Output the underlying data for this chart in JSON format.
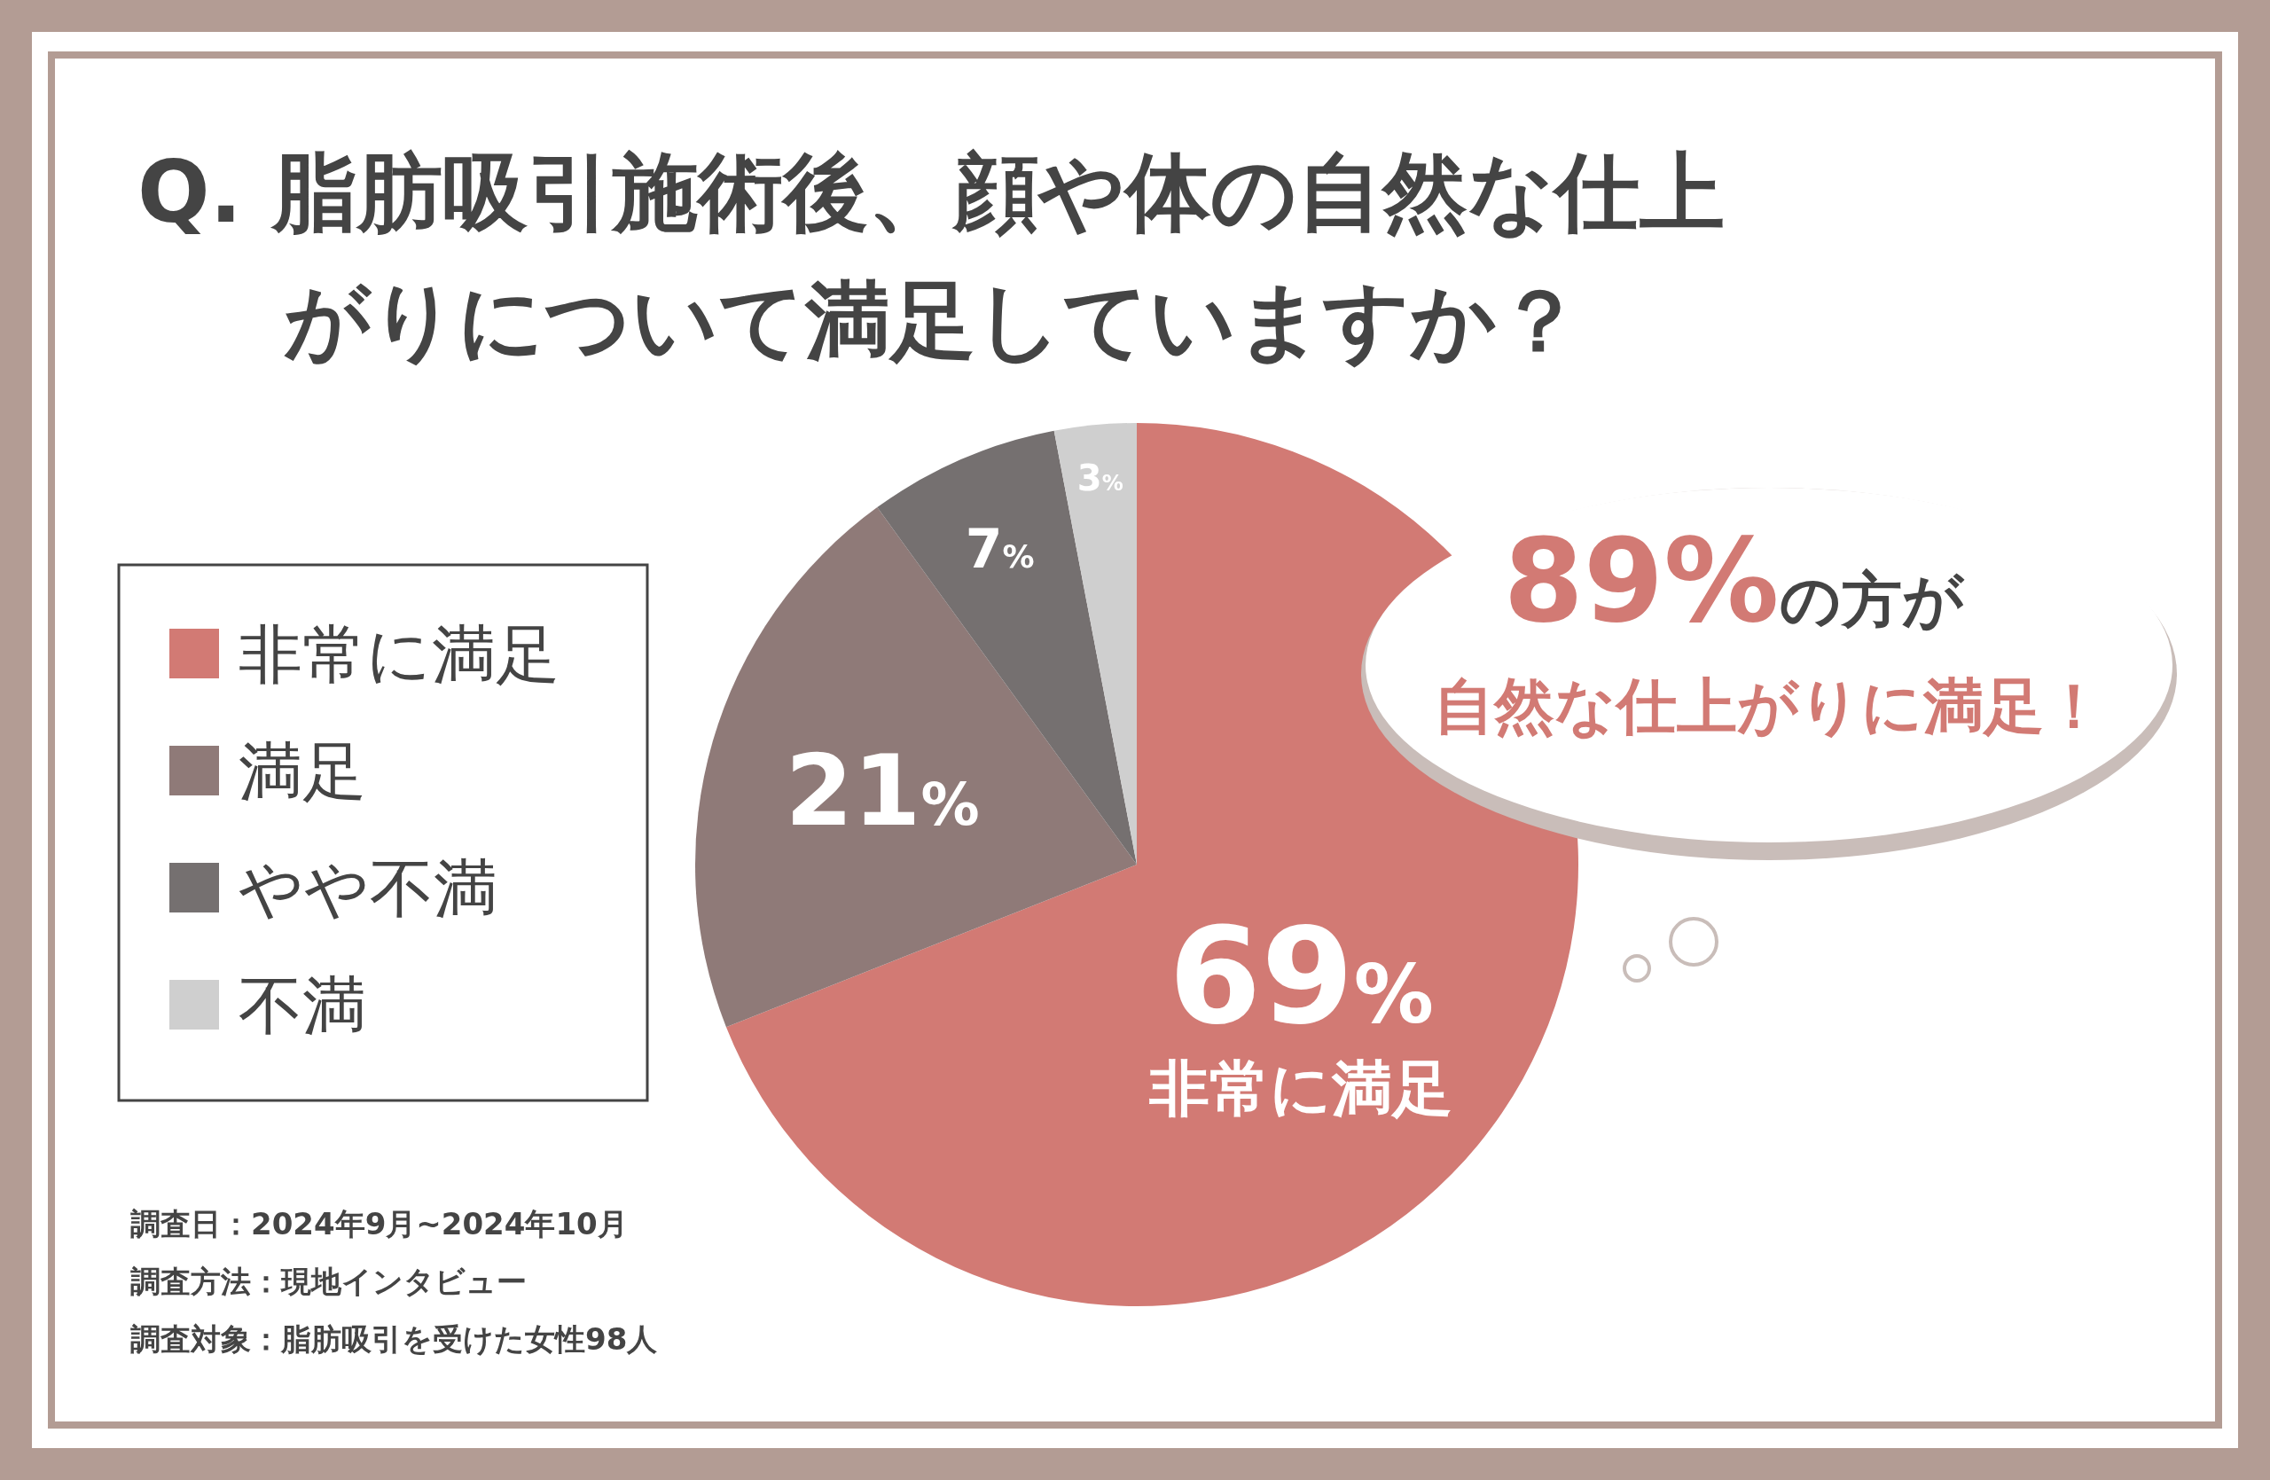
{
  "chart_data": {
    "type": "pie",
    "title": "Q. 脂肪吸引施術後、顔や体の自然な仕上がりについて満足していますか？",
    "categories": [
      "非常に満足",
      "満足",
      "やや不満",
      "不満"
    ],
    "values": [
      69,
      21,
      7,
      3
    ],
    "colors": [
      "#d27a74",
      "#8f7a78",
      "#757070",
      "#cfcfcf"
    ],
    "value_labels": [
      "69%",
      "21%",
      "7%",
      "3%"
    ],
    "legend": "left",
    "annotations": [
      {
        "text": "非常に満足",
        "x": "非常に満足"
      },
      "89%の方が",
      "自然な仕上がりに満足！",
      "調査日：2024年9月~2024年10月",
      "調査方法：現地インタビュー",
      "調査対象：脂肪吸引を受けた女性98人"
    ]
  }
}
